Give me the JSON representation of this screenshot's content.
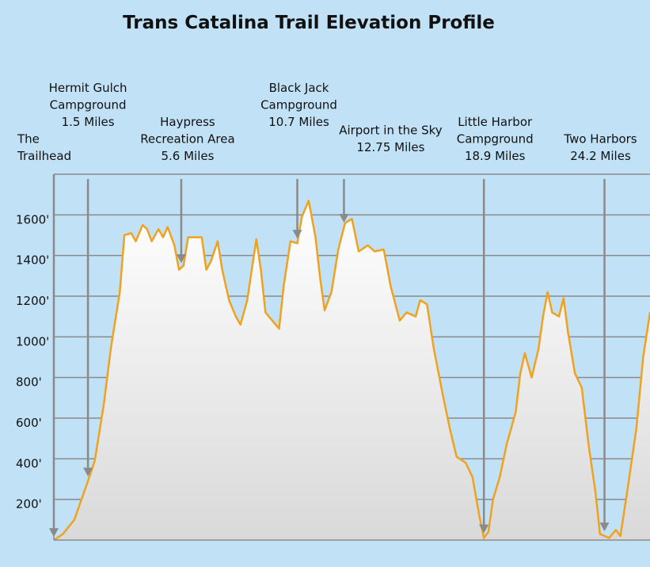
{
  "chart_data": {
    "type": "area",
    "title": "Trans Catalina Trail Elevation Profile",
    "x": [
      0,
      0.4,
      0.9,
      1.5,
      1.8,
      2.2,
      2.5,
      2.9,
      3.1,
      3.4,
      3.6,
      3.9,
      4.1,
      4.3,
      4.6,
      4.8,
      5.0,
      5.3,
      5.5,
      5.7,
      5.9,
      6.3,
      6.5,
      6.7,
      6.9,
      7.2,
      7.4,
      7.7,
      8.0,
      8.2,
      8.5,
      8.7,
      8.9,
      9.1,
      9.3,
      9.6,
      9.9,
      10.1,
      10.4,
      10.7,
      10.9,
      11.2,
      11.5,
      11.7,
      11.9,
      12.2,
      12.5,
      12.8,
      13.1,
      13.4,
      13.8,
      14.1,
      14.5,
      14.8,
      15.2,
      15.5,
      15.9,
      16.1,
      16.4,
      16.7,
      17.1,
      17.4,
      17.7,
      18.1,
      18.4,
      18.7,
      18.9,
      19.1,
      19.3,
      19.6,
      19.9,
      20.3,
      20.5,
      20.7,
      21.0,
      21.3,
      21.5,
      21.7,
      21.9,
      22.2,
      22.4,
      22.6,
      22.9,
      23.2,
      23.5,
      23.8,
      24.0,
      24.4,
      24.7,
      24.9,
      25.2,
      25.6,
      25.9,
      26.2
    ],
    "values": [
      0,
      30,
      100,
      290,
      390,
      670,
      940,
      1220,
      1500,
      1510,
      1470,
      1550,
      1530,
      1470,
      1530,
      1490,
      1540,
      1450,
      1330,
      1350,
      1490,
      1490,
      1490,
      1330,
      1370,
      1470,
      1330,
      1180,
      1100,
      1060,
      1180,
      1330,
      1480,
      1330,
      1120,
      1080,
      1040,
      1250,
      1470,
      1460,
      1590,
      1670,
      1490,
      1290,
      1130,
      1220,
      1430,
      1560,
      1580,
      1420,
      1450,
      1420,
      1430,
      1250,
      1080,
      1120,
      1100,
      1180,
      1160,
      940,
      710,
      550,
      410,
      380,
      310,
      120,
      10,
      40,
      200,
      310,
      470,
      630,
      820,
      920,
      800,
      940,
      1100,
      1220,
      1120,
      1100,
      1190,
      1020,
      820,
      750,
      470,
      240,
      30,
      10,
      50,
      20,
      240,
      550,
      900,
      1120
    ],
    "xlim": [
      0,
      26.2
    ],
    "ylim": [
      0,
      1800
    ],
    "yticks": [
      {
        "value": 200,
        "label": "200'"
      },
      {
        "value": 400,
        "label": "400'"
      },
      {
        "value": 600,
        "label": "600'"
      },
      {
        "value": 800,
        "label": "800'"
      },
      {
        "value": 1000,
        "label": "1000'"
      },
      {
        "value": 1200,
        "label": "1200'"
      },
      {
        "value": 1400,
        "label": "1400'"
      },
      {
        "value": 1600,
        "label": "1600'"
      }
    ],
    "grid": true,
    "color": "#f0a21e",
    "annotations": [
      {
        "text": [
          "The",
          "Trailhead"
        ],
        "x": 0
      },
      {
        "text": [
          "Hermit Gulch",
          "Campground",
          "1.5 Miles"
        ],
        "x": 1.5
      },
      {
        "text": [
          "Haypress",
          "Recreation Area",
          "5.6 Miles"
        ],
        "x": 5.6
      },
      {
        "text": [
          "Black Jack",
          "Campground",
          "10.7 Miles"
        ],
        "x": 10.7
      },
      {
        "text": [
          "Airport in the Sky",
          "12.75 Miles"
        ],
        "x": 12.75
      },
      {
        "text": [
          "Little Harbor",
          "Campground",
          "18.9 Miles"
        ],
        "x": 18.9
      },
      {
        "text": [
          "Two Harbors",
          "24.2 Miles"
        ],
        "x": 24.2
      }
    ]
  }
}
